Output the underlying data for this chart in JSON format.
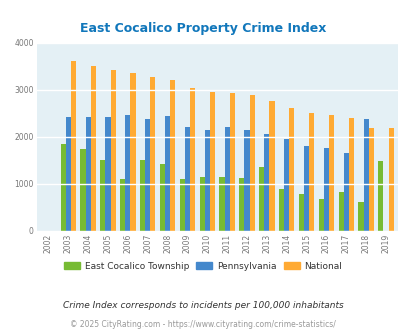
{
  "title": "East Cocalico Property Crime Index",
  "years": [
    2002,
    2003,
    2004,
    2005,
    2006,
    2007,
    2008,
    2009,
    2010,
    2011,
    2012,
    2013,
    2014,
    2015,
    2016,
    2017,
    2018,
    2019
  ],
  "east_cocalico": [
    0,
    1840,
    1750,
    1520,
    1100,
    1520,
    1430,
    1100,
    1150,
    1140,
    1130,
    1360,
    900,
    780,
    680,
    830,
    610,
    1490
  ],
  "pennsylvania": [
    0,
    2420,
    2420,
    2430,
    2470,
    2380,
    2440,
    2210,
    2150,
    2210,
    2150,
    2060,
    1950,
    1810,
    1760,
    1650,
    2380,
    0
  ],
  "national": [
    0,
    3610,
    3500,
    3430,
    3360,
    3280,
    3210,
    3050,
    2960,
    2940,
    2890,
    2770,
    2610,
    2510,
    2460,
    2400,
    2190,
    2180
  ],
  "color_east": "#77bb33",
  "color_penn": "#4488cc",
  "color_national": "#ffaa33",
  "bg_color": "#e4f0f5",
  "ylim": [
    0,
    4000
  ],
  "note": "Crime Index corresponds to incidents per 100,000 inhabitants",
  "footer": "© 2025 CityRating.com - https://www.cityrating.com/crime-statistics/",
  "title_color": "#1177bb",
  "note_color": "#333333",
  "footer_color": "#999999",
  "title_fontsize": 9,
  "note_fontsize": 6.5,
  "footer_fontsize": 5.5,
  "tick_fontsize": 5.5,
  "legend_fontsize": 6.5
}
